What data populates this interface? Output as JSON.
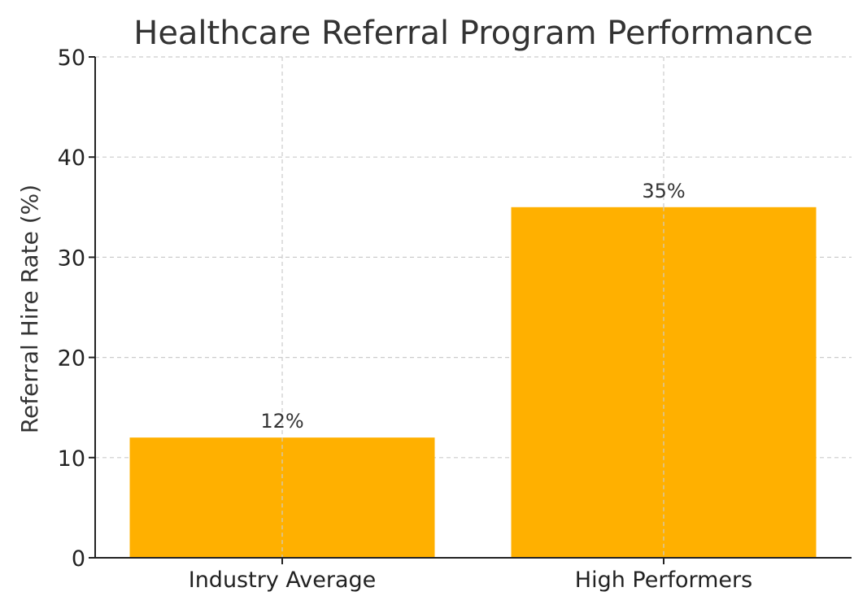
{
  "chart_data": {
    "type": "bar",
    "title": "Healthcare Referral Program Performance",
    "xlabel": "",
    "ylabel": "Referral Hire Rate (%)",
    "categories": [
      "Industry Average",
      "High Performers"
    ],
    "values": [
      12,
      35
    ],
    "data_labels": [
      "12%",
      "35%"
    ],
    "ylim": [
      0,
      50
    ],
    "yticks": [
      0,
      10,
      20,
      30,
      40,
      50
    ],
    "ytick_labels": [
      "0",
      "10",
      "20",
      "30",
      "40",
      "50"
    ],
    "grid": true,
    "bar_color": "#FFB000"
  }
}
